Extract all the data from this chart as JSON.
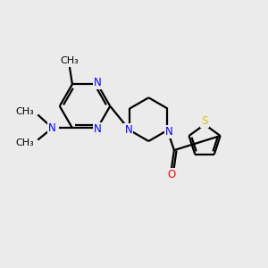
{
  "bg_color": "#ebebeb",
  "N_color": "#0000ff",
  "O_color": "#ff0000",
  "S_color": "#cccc00",
  "bond_color": "#000000",
  "line_width": 1.6,
  "font_size": 8.5,
  "fig_width": 3.0,
  "fig_height": 3.0,
  "xlim": [
    0,
    10
  ],
  "ylim": [
    0,
    10
  ]
}
